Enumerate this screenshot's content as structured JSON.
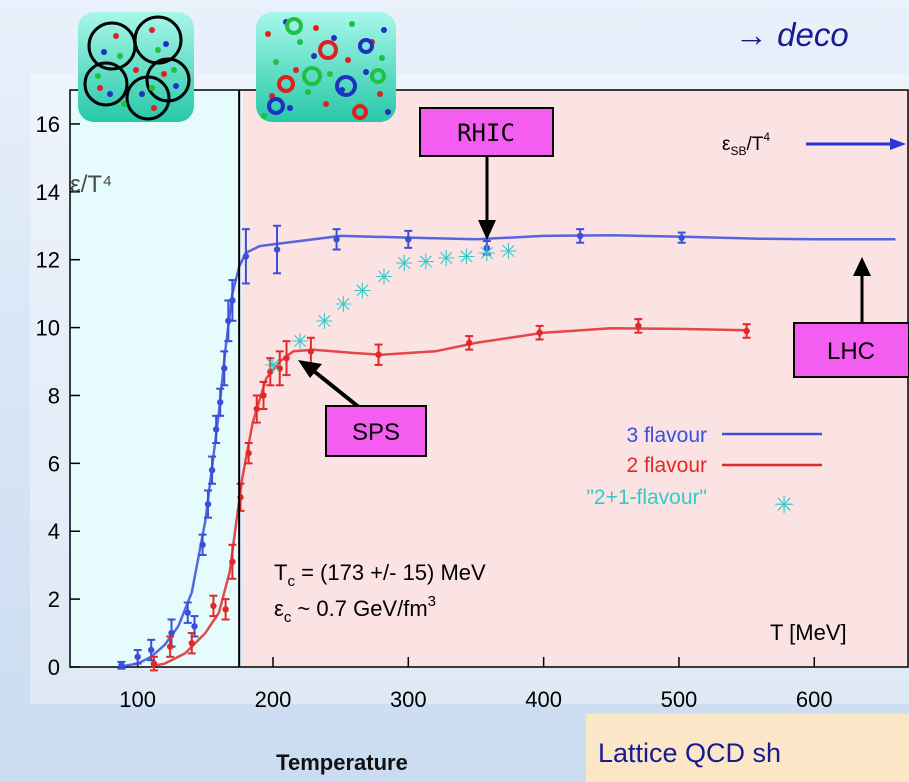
{
  "header": {
    "text": "→ deco"
  },
  "chart_data": {
    "type": "line",
    "xlabel": "Temperature",
    "ylabel_annotation": "ε/T⁴",
    "xlim": [
      50,
      670
    ],
    "ylim": [
      0,
      17
    ],
    "x_ticks": [
      100,
      200,
      300,
      400,
      500,
      600
    ],
    "y_ticks": [
      0,
      2,
      4,
      6,
      8,
      10,
      12,
      14,
      16
    ],
    "x_unit_label": "T [MeV]",
    "tc_line": 175,
    "regions": {
      "hadron": {
        "from": 50,
        "to": 175,
        "color": "#e6fbfb"
      },
      "qgp": {
        "from": 175,
        "to": 670,
        "color": "#fce3e3"
      }
    },
    "series": [
      {
        "name": "3 flavour",
        "color": "#3a4fd8",
        "curve": [
          [
            88,
            0.02
          ],
          [
            100,
            0.1
          ],
          [
            110,
            0.3
          ],
          [
            120,
            0.65
          ],
          [
            130,
            1.2
          ],
          [
            140,
            2.2
          ],
          [
            150,
            4.3
          ],
          [
            160,
            7.5
          ],
          [
            165,
            9.4
          ],
          [
            170,
            11.0
          ],
          [
            175,
            11.8
          ],
          [
            180,
            12.2
          ],
          [
            190,
            12.4
          ],
          [
            200,
            12.45
          ],
          [
            220,
            12.55
          ],
          [
            250,
            12.7
          ],
          [
            300,
            12.65
          ],
          [
            350,
            12.6
          ],
          [
            400,
            12.7
          ],
          [
            450,
            12.72
          ],
          [
            500,
            12.68
          ],
          [
            560,
            12.62
          ],
          [
            600,
            12.6
          ],
          [
            640,
            12.6
          ],
          [
            660,
            12.6
          ]
        ],
        "points": [
          [
            88,
            0.05,
            0.1
          ],
          [
            100,
            0.3,
            0.2
          ],
          [
            110,
            0.5,
            0.3
          ],
          [
            125,
            1.0,
            0.4
          ],
          [
            137,
            1.6,
            0.3
          ],
          [
            142,
            1.2,
            0.3
          ],
          [
            148,
            3.6,
            0.3
          ],
          [
            152,
            4.8,
            0.4
          ],
          [
            155,
            5.8,
            0.4
          ],
          [
            158,
            7.0,
            0.4
          ],
          [
            161,
            7.8,
            0.4
          ],
          [
            164,
            8.8,
            0.5
          ],
          [
            167,
            10.2,
            0.6
          ],
          [
            170,
            10.8,
            0.6
          ],
          [
            180,
            12.1,
            0.8
          ],
          [
            203,
            12.3,
            0.7
          ],
          [
            247,
            12.6,
            0.3
          ],
          [
            300,
            12.6,
            0.25
          ],
          [
            358,
            12.35,
            0.2
          ],
          [
            427,
            12.7,
            0.2
          ],
          [
            502,
            12.65,
            0.15
          ]
        ]
      },
      {
        "name": "2 flavour",
        "color": "#e02a2a",
        "curve": [
          [
            110,
            0.02
          ],
          [
            120,
            0.1
          ],
          [
            135,
            0.4
          ],
          [
            150,
            1.0
          ],
          [
            160,
            1.6
          ],
          [
            168,
            2.8
          ],
          [
            172,
            4.0
          ],
          [
            177,
            5.5
          ],
          [
            185,
            7.2
          ],
          [
            195,
            8.5
          ],
          [
            205,
            9.0
          ],
          [
            215,
            9.3
          ],
          [
            230,
            9.35
          ],
          [
            260,
            9.25
          ],
          [
            280,
            9.2
          ],
          [
            320,
            9.3
          ],
          [
            350,
            9.55
          ],
          [
            400,
            9.85
          ],
          [
            450,
            9.98
          ],
          [
            500,
            9.96
          ],
          [
            550,
            9.92
          ]
        ],
        "points": [
          [
            112,
            0.1,
            0.2
          ],
          [
            124,
            0.6,
            0.3
          ],
          [
            140,
            0.7,
            0.3
          ],
          [
            156,
            1.8,
            0.3
          ],
          [
            165,
            1.7,
            0.3
          ],
          [
            170,
            3.1,
            0.5
          ],
          [
            176,
            5.0,
            0.4
          ],
          [
            182,
            6.3,
            0.3
          ],
          [
            188,
            7.6,
            0.4
          ],
          [
            193,
            8.0,
            0.4
          ],
          [
            198,
            8.7,
            0.4
          ],
          [
            205,
            8.8,
            0.5
          ],
          [
            210,
            9.1,
            0.5
          ],
          [
            228,
            9.3,
            0.4
          ],
          [
            278,
            9.2,
            0.3
          ],
          [
            345,
            9.55,
            0.2
          ],
          [
            397,
            9.85,
            0.2
          ],
          [
            470,
            10.05,
            0.2
          ],
          [
            550,
            9.9,
            0.2
          ]
        ]
      },
      {
        "name": "\"2+1-flavour\"",
        "color": "#38c8c8",
        "style": "asterisk",
        "points": [
          [
            200,
            8.9
          ],
          [
            220,
            9.6
          ],
          [
            238,
            10.2
          ],
          [
            252,
            10.7
          ],
          [
            266,
            11.1
          ],
          [
            282,
            11.5
          ],
          [
            297,
            11.9
          ],
          [
            313,
            11.95
          ],
          [
            328,
            12.05
          ],
          [
            343,
            12.1
          ],
          [
            358,
            12.2
          ],
          [
            374,
            12.25
          ]
        ]
      }
    ],
    "annotations": {
      "tc": "T",
      "tc_sub": "c",
      "tc_value": " = (173 +/- 15) MeV",
      "ec": "ε",
      "ec_sub": "c",
      "ec_value": " ~ 0.7 GeV/fm",
      "ec_sup": "3",
      "esb": "ε",
      "esb_sub": "SB",
      "esb_tail": "/T",
      "esb_sup": "4",
      "boxes": [
        {
          "label": "RHIC",
          "at": [
            352,
            12.2
          ]
        },
        {
          "label": "LHC",
          "at": [
            645,
            12.4
          ]
        },
        {
          "label": "SPS",
          "at": [
            205,
            9.0
          ]
        }
      ]
    },
    "legend": "center-right"
  },
  "footer": {
    "text": "Lattice QCD sh"
  }
}
